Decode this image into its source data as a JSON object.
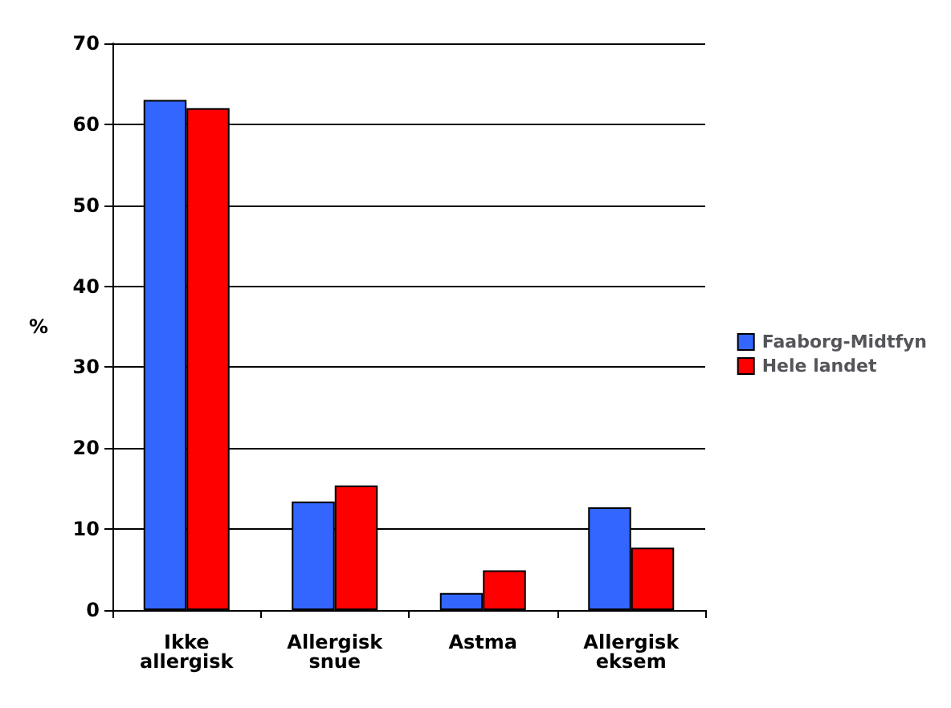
{
  "chart_data": {
    "type": "bar",
    "ylabel": "%",
    "categories": [
      "Ikke\nallergisk",
      "Allergisk\nsnue",
      "Astma",
      "Allergisk\neksem"
    ],
    "series": [
      {
        "name": "Faaborg-Midtfyn",
        "color": "#3366ff",
        "values": [
          63,
          13.4,
          2.1,
          12.7
        ]
      },
      {
        "name": "Hele landet",
        "color": "#ff0000",
        "values": [
          62,
          15.4,
          4.9,
          7.7
        ]
      }
    ],
    "ylim": [
      0,
      70
    ],
    "yticks": [
      0,
      10,
      20,
      30,
      40,
      50,
      60,
      70
    ],
    "grid": "y",
    "legend": "right"
  }
}
